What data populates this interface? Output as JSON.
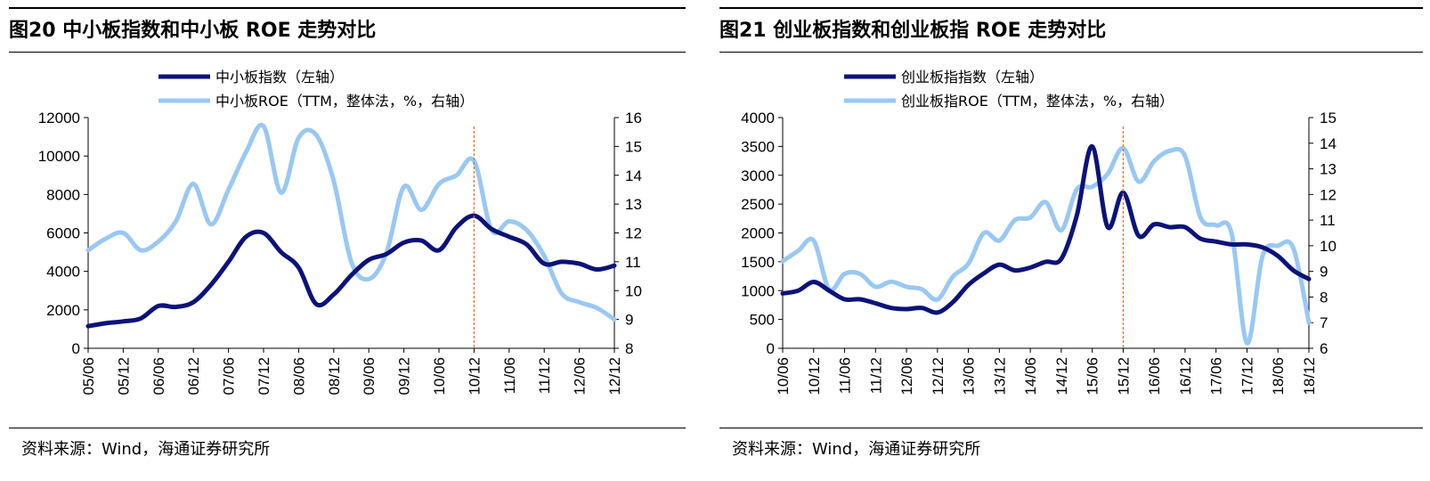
{
  "colors": {
    "dark_series": "#0b1379",
    "light_series": "#99c8f4",
    "marker_line": "#e2702c",
    "axis": "#000000"
  },
  "charts": [
    {
      "title": "图20 中小板指数和中小板 ROE 走势对比",
      "source": "资料来源：Wind，海通证券研究所",
      "legend": [
        "中小板指数（左轴）",
        "中小板ROE（TTM，整体法，%，右轴）"
      ],
      "y_left_ticks": [
        "0",
        "2000",
        "4000",
        "6000",
        "8000",
        "10000",
        "12000"
      ],
      "y_right_ticks": [
        "8",
        "9",
        "10",
        "11",
        "12",
        "13",
        "14",
        "15",
        "16"
      ],
      "x_ticks": [
        "05/06",
        "05/12",
        "06/06",
        "06/12",
        "07/06",
        "07/12",
        "08/06",
        "08/12",
        "09/06",
        "09/12",
        "10/06",
        "10/12",
        "11/06",
        "11/12",
        "12/06",
        "12/12"
      ]
    },
    {
      "title": "图21 创业板指数和创业板指 ROE 走势对比",
      "source": "资料来源：Wind，海通证券研究所",
      "legend": [
        "创业板指指数（左轴）",
        "创业板指ROE（TTM，整体法，%，右轴）"
      ],
      "y_left_ticks": [
        "0",
        "500",
        "1000",
        "1500",
        "2000",
        "2500",
        "3000",
        "3500",
        "4000"
      ],
      "y_right_ticks": [
        "6",
        "7",
        "8",
        "9",
        "10",
        "11",
        "12",
        "13",
        "14",
        "15"
      ],
      "x_ticks": [
        "10/06",
        "10/12",
        "11/06",
        "11/12",
        "12/06",
        "12/12",
        "13/06",
        "13/12",
        "14/06",
        "14/12",
        "15/06",
        "15/12",
        "16/06",
        "16/12",
        "17/06",
        "17/12",
        "18/06",
        "18/12"
      ]
    }
  ],
  "chart_data": [
    {
      "type": "line",
      "title": "图20 中小板指数和中小板 ROE 走势对比",
      "x_range": [
        "05/06",
        "12/12"
      ],
      "ylim_left": [
        0,
        12000
      ],
      "ylim_right": [
        8,
        16
      ],
      "vertical_marker_x": "10/12",
      "series": [
        {
          "name": "中小板指数（左轴）",
          "axis": "left",
          "x": [
            "05/06",
            "05/09",
            "05/12",
            "06/03",
            "06/06",
            "06/09",
            "06/12",
            "07/03",
            "07/06",
            "07/09",
            "07/12",
            "08/03",
            "08/06",
            "08/09",
            "08/12",
            "09/03",
            "09/06",
            "09/09",
            "09/12",
            "10/03",
            "10/06",
            "10/09",
            "10/12",
            "11/03",
            "11/06",
            "11/09",
            "11/12",
            "12/03",
            "12/06",
            "12/09",
            "12/12"
          ],
          "values": [
            1150,
            1300,
            1400,
            1550,
            2200,
            2150,
            2400,
            3300,
            4500,
            5800,
            6000,
            5000,
            4200,
            2300,
            2800,
            3800,
            4600,
            4900,
            5500,
            5600,
            5100,
            6300,
            6900,
            6200,
            5800,
            5400,
            4400,
            4500,
            4400,
            4100,
            4300
          ]
        },
        {
          "name": "中小板ROE（TTM，整体法，%，右轴）",
          "axis": "right",
          "x": [
            "05/06",
            "05/09",
            "05/12",
            "06/03",
            "06/06",
            "06/09",
            "06/12",
            "07/03",
            "07/06",
            "07/09",
            "07/12",
            "08/03",
            "08/06",
            "08/09",
            "08/12",
            "09/03",
            "09/06",
            "09/09",
            "09/12",
            "10/03",
            "10/06",
            "10/09",
            "10/12",
            "11/03",
            "11/06",
            "11/09",
            "11/12",
            "12/03",
            "12/06",
            "12/09",
            "12/12"
          ],
          "values": [
            11.4,
            11.8,
            12.0,
            11.4,
            11.7,
            12.4,
            13.7,
            12.3,
            13.5,
            14.8,
            15.7,
            13.4,
            15.3,
            15.4,
            13.8,
            11.0,
            10.4,
            11.3,
            13.6,
            12.8,
            13.7,
            14.0,
            14.5,
            12.1,
            12.4,
            12.1,
            11.2,
            9.9,
            9.6,
            9.4,
            9.0
          ]
        }
      ]
    },
    {
      "type": "line",
      "title": "图21 创业板指数和创业板指 ROE 走势对比",
      "x_range": [
        "10/06",
        "18/12"
      ],
      "ylim_left": [
        0,
        4000
      ],
      "ylim_right": [
        6,
        15
      ],
      "vertical_marker_x": "15/12",
      "series": [
        {
          "name": "创业板指指数（左轴）",
          "axis": "left",
          "x": [
            "10/06",
            "10/09",
            "10/12",
            "11/03",
            "11/06",
            "11/09",
            "11/12",
            "12/03",
            "12/06",
            "12/09",
            "12/12",
            "13/03",
            "13/06",
            "13/09",
            "13/12",
            "14/03",
            "14/06",
            "14/09",
            "14/12",
            "15/03",
            "15/06",
            "15/09",
            "15/12",
            "16/03",
            "16/06",
            "16/09",
            "16/12",
            "17/03",
            "17/06",
            "17/09",
            "17/12",
            "18/03",
            "18/06",
            "18/09",
            "18/12"
          ],
          "values": [
            950,
            1000,
            1150,
            1000,
            850,
            850,
            780,
            700,
            680,
            700,
            620,
            800,
            1100,
            1300,
            1450,
            1350,
            1400,
            1500,
            1550,
            2300,
            3500,
            2100,
            2700,
            1950,
            2150,
            2100,
            2100,
            1900,
            1850,
            1800,
            1800,
            1750,
            1600,
            1350,
            1200
          ]
        },
        {
          "name": "创业板指ROE（TTM，整体法，%，右轴）",
          "axis": "right",
          "x": [
            "10/06",
            "10/09",
            "10/12",
            "11/03",
            "11/06",
            "11/09",
            "11/12",
            "12/03",
            "12/06",
            "12/09",
            "12/12",
            "13/03",
            "13/06",
            "13/09",
            "13/12",
            "14/03",
            "14/06",
            "14/09",
            "14/12",
            "15/03",
            "15/06",
            "15/09",
            "15/12",
            "16/03",
            "16/06",
            "16/09",
            "16/12",
            "17/03",
            "17/06",
            "17/09",
            "17/12",
            "18/03",
            "18/06",
            "18/09",
            "18/12"
          ],
          "values": [
            9.4,
            9.8,
            10.2,
            8.3,
            8.9,
            8.9,
            8.4,
            8.6,
            8.4,
            8.3,
            7.9,
            8.8,
            9.3,
            10.5,
            10.2,
            11.0,
            11.1,
            11.7,
            10.6,
            12.2,
            12.3,
            12.8,
            13.8,
            12.5,
            13.3,
            13.7,
            13.5,
            11.1,
            10.8,
            10.5,
            6.2,
            9.6,
            10.0,
            9.9,
            7.0
          ]
        }
      ]
    }
  ]
}
